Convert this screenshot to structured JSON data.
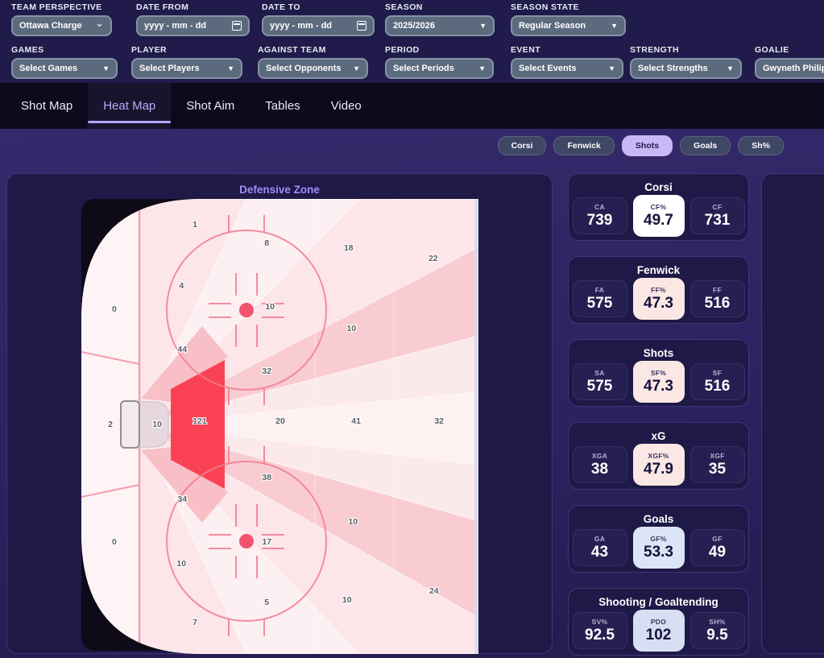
{
  "filters": {
    "row1": [
      {
        "label": "TEAM PERSPECTIVE",
        "value": "Ottawa Charge",
        "type": "select-caret"
      },
      {
        "label": "DATE FROM",
        "value": "yyyy - mm - dd",
        "type": "date"
      },
      {
        "label": "DATE TO",
        "value": "yyyy - mm - dd",
        "type": "date"
      },
      {
        "label": "SEASON",
        "value": "2025/2026",
        "type": "select"
      },
      {
        "label": "SEASON STATE",
        "value": "Regular Season",
        "type": "select"
      }
    ],
    "row2": [
      {
        "label": "GAMES",
        "value": "Select Games",
        "type": "select"
      },
      {
        "label": "PLAYER",
        "value": "Select Players",
        "type": "select"
      },
      {
        "label": "AGAINST TEAM",
        "value": "Select Opponents",
        "type": "select"
      },
      {
        "label": "PERIOD",
        "value": "Select Periods",
        "type": "select"
      },
      {
        "label": "EVENT",
        "value": "Select Events",
        "type": "select"
      },
      {
        "label": "STRENGTH",
        "value": "Select Strengths",
        "type": "select"
      },
      {
        "label": "GOALIE",
        "value": "Gwyneth Philips",
        "type": "select-plain"
      }
    ]
  },
  "tabs": [
    {
      "label": "Shot Map",
      "active": false
    },
    {
      "label": "Heat Map",
      "active": true
    },
    {
      "label": "Shot Aim",
      "active": false
    },
    {
      "label": "Tables",
      "active": false
    },
    {
      "label": "Video",
      "active": false
    }
  ],
  "chips": [
    {
      "label": "Corsi",
      "active": false
    },
    {
      "label": "Fenwick",
      "active": false
    },
    {
      "label": "Shots",
      "active": true
    },
    {
      "label": "Goals",
      "active": false
    },
    {
      "label": "Sh%",
      "active": false
    }
  ],
  "heatmap": {
    "title": "Defensive Zone",
    "hot_color": "#fb4254",
    "points": [
      {
        "v": "1",
        "x": 28.6,
        "y": 5.7
      },
      {
        "v": "8",
        "x": 46.7,
        "y": 9.7
      },
      {
        "v": "18",
        "x": 67.3,
        "y": 10.8
      },
      {
        "v": "22",
        "x": 88.6,
        "y": 13.1
      },
      {
        "v": "4",
        "x": 25.2,
        "y": 19.1
      },
      {
        "v": "0",
        "x": 8.3,
        "y": 24.2
      },
      {
        "v": "10",
        "x": 47.5,
        "y": 23.7
      },
      {
        "v": "10",
        "x": 68.0,
        "y": 28.5
      },
      {
        "v": "44",
        "x": 25.4,
        "y": 33.1
      },
      {
        "v": "32",
        "x": 46.7,
        "y": 37.9
      },
      {
        "v": "2",
        "x": 7.3,
        "y": 49.6
      },
      {
        "v": "10",
        "x": 19.1,
        "y": 49.6
      },
      {
        "v": "121",
        "x": 29.8,
        "y": 48.8
      },
      {
        "v": "20",
        "x": 50.1,
        "y": 48.8
      },
      {
        "v": "41",
        "x": 69.2,
        "y": 48.8
      },
      {
        "v": "32",
        "x": 90.1,
        "y": 48.8
      },
      {
        "v": "38",
        "x": 46.7,
        "y": 61.2
      },
      {
        "v": "34",
        "x": 25.4,
        "y": 66.0
      },
      {
        "v": "10",
        "x": 68.4,
        "y": 71.0
      },
      {
        "v": "0",
        "x": 8.3,
        "y": 75.4
      },
      {
        "v": "17",
        "x": 46.7,
        "y": 75.4
      },
      {
        "v": "10",
        "x": 25.2,
        "y": 80.2
      },
      {
        "v": "5",
        "x": 46.7,
        "y": 88.7
      },
      {
        "v": "10",
        "x": 66.9,
        "y": 88.1
      },
      {
        "v": "24",
        "x": 88.8,
        "y": 86.2
      },
      {
        "v": "7",
        "x": 28.6,
        "y": 93.1
      }
    ]
  },
  "stat_cards": [
    {
      "title": "Corsi",
      "stats": [
        {
          "label": "CA",
          "value": "739"
        },
        {
          "label": "CF%",
          "value": "49.7",
          "highlight": "#ffffff"
        },
        {
          "label": "CF",
          "value": "731"
        }
      ]
    },
    {
      "title": "Fenwick",
      "stats": [
        {
          "label": "FA",
          "value": "575"
        },
        {
          "label": "FF%",
          "value": "47.3",
          "highlight": "#fbe7e4"
        },
        {
          "label": "FF",
          "value": "516"
        }
      ]
    },
    {
      "title": "Shots",
      "stats": [
        {
          "label": "SA",
          "value": "575"
        },
        {
          "label": "SF%",
          "value": "47.3",
          "highlight": "#fbe7e4"
        },
        {
          "label": "SF",
          "value": "516"
        }
      ]
    },
    {
      "title": "xG",
      "stats": [
        {
          "label": "XGA",
          "value": "38"
        },
        {
          "label": "XGF%",
          "value": "47.9",
          "highlight": "#fbe7e4"
        },
        {
          "label": "XGF",
          "value": "35"
        }
      ]
    },
    {
      "title": "Goals",
      "stats": [
        {
          "label": "GA",
          "value": "43"
        },
        {
          "label": "GF%",
          "value": "53.3",
          "highlight": "#dbe5f7"
        },
        {
          "label": "GF",
          "value": "49"
        }
      ]
    },
    {
      "title": "Shooting / Goaltending",
      "stats": [
        {
          "label": "SV%",
          "value": "92.5"
        },
        {
          "label": "PDO",
          "value": "102",
          "highlight": "#d8def4"
        },
        {
          "label": "SH%",
          "value": "9.5"
        }
      ]
    }
  ]
}
